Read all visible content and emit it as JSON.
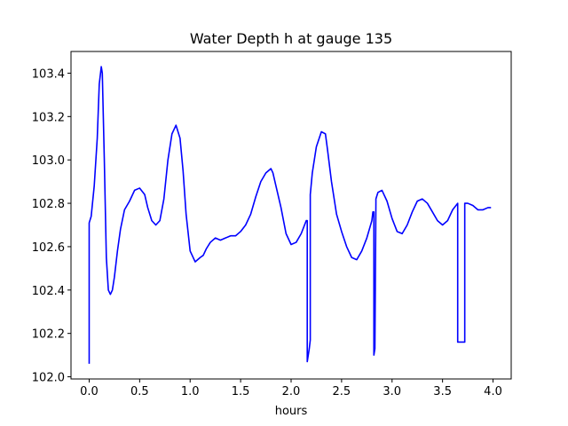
{
  "chart_data": {
    "type": "line",
    "title": "Water Depth h at gauge 135",
    "xlabel": "hours",
    "ylabel": "",
    "xlim": [
      -0.18,
      4.18
    ],
    "ylim": [
      101.99,
      103.5
    ],
    "x_ticks": [
      0.0,
      0.5,
      1.0,
      1.5,
      2.0,
      2.5,
      3.0,
      3.5,
      4.0
    ],
    "x_tick_labels": [
      "0.0",
      "0.5",
      "1.0",
      "1.5",
      "2.0",
      "2.5",
      "3.0",
      "3.5",
      "4.0"
    ],
    "y_ticks": [
      102.0,
      102.2,
      102.4,
      102.6,
      102.8,
      103.0,
      103.2,
      103.4
    ],
    "y_tick_labels": [
      "102.0",
      "102.2",
      "102.4",
      "102.6",
      "102.8",
      "103.0",
      "103.2",
      "103.4"
    ],
    "grid": false,
    "series": [
      {
        "color": "#0000ff",
        "x": [
          0.0,
          0.0,
          0.02,
          0.05,
          0.08,
          0.1,
          0.12,
          0.13,
          0.15,
          0.17,
          0.19,
          0.21,
          0.23,
          0.25,
          0.28,
          0.31,
          0.35,
          0.4,
          0.45,
          0.5,
          0.55,
          0.58,
          0.62,
          0.66,
          0.7,
          0.74,
          0.78,
          0.82,
          0.86,
          0.9,
          0.93,
          0.96,
          1.0,
          1.05,
          1.1,
          1.13,
          1.16,
          1.2,
          1.25,
          1.3,
          1.35,
          1.4,
          1.45,
          1.5,
          1.55,
          1.6,
          1.65,
          1.7,
          1.75,
          1.8,
          1.82,
          1.85,
          1.9,
          1.95,
          2.0,
          2.05,
          2.1,
          2.15,
          2.16,
          2.16,
          2.18,
          2.19,
          2.19,
          2.21,
          2.25,
          2.3,
          2.34,
          2.36,
          2.4,
          2.45,
          2.5,
          2.55,
          2.6,
          2.65,
          2.7,
          2.75,
          2.8,
          2.81,
          2.82,
          2.82,
          2.83,
          2.84,
          2.84,
          2.86,
          2.9,
          2.95,
          3.0,
          3.05,
          3.1,
          3.15,
          3.2,
          3.25,
          3.3,
          3.35,
          3.4,
          3.45,
          3.5,
          3.55,
          3.6,
          3.65,
          3.65,
          3.68,
          3.72,
          3.72,
          3.75,
          3.8,
          3.85,
          3.9,
          3.95,
          3.98
        ],
        "y": [
          102.06,
          102.71,
          102.74,
          102.88,
          103.1,
          103.35,
          103.43,
          103.4,
          103.0,
          102.55,
          102.4,
          102.38,
          102.4,
          102.46,
          102.58,
          102.68,
          102.77,
          102.81,
          102.86,
          102.87,
          102.84,
          102.78,
          102.72,
          102.7,
          102.72,
          102.82,
          103.0,
          103.12,
          103.16,
          103.1,
          102.95,
          102.75,
          102.58,
          102.53,
          102.55,
          102.56,
          102.59,
          102.62,
          102.64,
          102.63,
          102.64,
          102.65,
          102.65,
          102.67,
          102.7,
          102.75,
          102.83,
          102.9,
          102.94,
          102.96,
          102.94,
          102.88,
          102.78,
          102.66,
          102.61,
          102.62,
          102.66,
          102.72,
          102.72,
          102.07,
          102.13,
          102.17,
          102.84,
          102.94,
          103.06,
          103.13,
          103.12,
          103.05,
          102.9,
          102.75,
          102.67,
          102.6,
          102.55,
          102.54,
          102.58,
          102.64,
          102.72,
          102.76,
          102.76,
          102.1,
          102.13,
          102.8,
          102.82,
          102.85,
          102.86,
          102.81,
          102.73,
          102.67,
          102.66,
          102.7,
          102.76,
          102.81,
          102.82,
          102.8,
          102.76,
          102.72,
          102.7,
          102.72,
          102.77,
          102.8,
          102.16,
          102.16,
          102.16,
          102.8,
          102.8,
          102.79,
          102.77,
          102.77,
          102.78,
          102.78
        ]
      }
    ]
  }
}
